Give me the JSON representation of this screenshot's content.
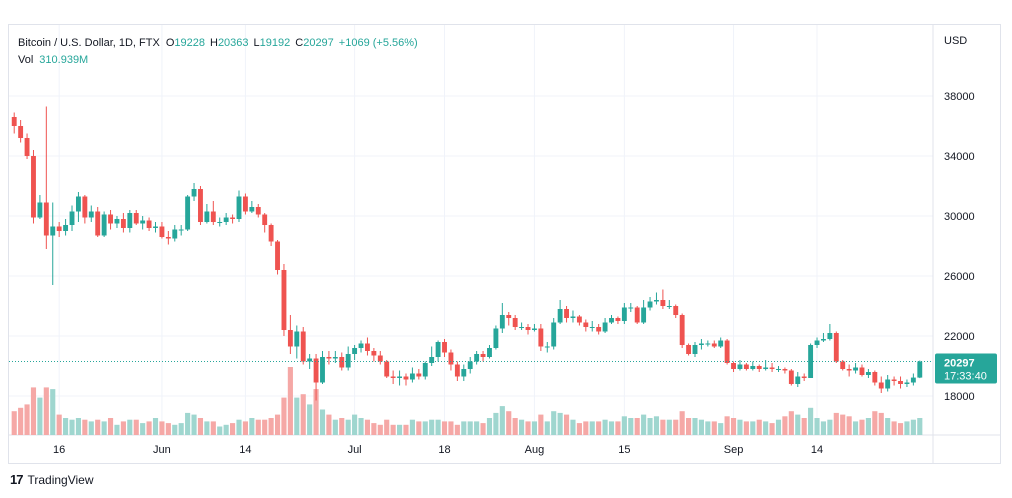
{
  "legend": {
    "symbol": "Bitcoin / U.S. Dollar, 1D, FTX",
    "open_label": "O",
    "open": "19228",
    "high_label": "H",
    "high": "20363",
    "low_label": "L",
    "low": "19192",
    "close_label": "C",
    "close": "20297",
    "change": "+1069 (+5.56%)",
    "vol_label": "Vol",
    "vol": "310.939M"
  },
  "price_tag": {
    "price": "20297",
    "countdown": "17:33:40"
  },
  "currency": "USD",
  "brand": {
    "logo": "17",
    "name": "TradingView"
  },
  "colors": {
    "up": "#26a69a",
    "down": "#ef5350",
    "up_vol": "#9fd6cf",
    "down_vol": "#f5a8a6",
    "grid": "#f0f3fa",
    "tag": "#26a69a"
  },
  "chart_data": {
    "type": "candlestick",
    "title": "Bitcoin / U.S. Dollar, 1D, FTX",
    "ylabel": "USD",
    "ylim": [
      15500,
      42400
    ],
    "y_ticks": [
      18000,
      22000,
      26000,
      30000,
      34000,
      38000
    ],
    "x_ticks": [
      {
        "label": "16",
        "index": 7
      },
      {
        "label": "Jun",
        "index": 23
      },
      {
        "label": "14",
        "index": 36
      },
      {
        "label": "Jul",
        "index": 53
      },
      {
        "label": "18",
        "index": 67
      },
      {
        "label": "Aug",
        "index": 81
      },
      {
        "label": "15",
        "index": 95
      },
      {
        "label": "Sep",
        "index": 112
      },
      {
        "label": "14",
        "index": 125
      }
    ],
    "last_price": 20297,
    "candles": [
      [
        36600,
        36000,
        36900,
        35500,
        14
      ],
      [
        36000,
        35200,
        36400,
        34900,
        16
      ],
      [
        35200,
        34000,
        35500,
        33800,
        18
      ],
      [
        34000,
        29900,
        34400,
        29500,
        28
      ],
      [
        29900,
        30900,
        31400,
        29800,
        22
      ],
      [
        30900,
        28700,
        37300,
        27800,
        28
      ],
      [
        28700,
        29300,
        30900,
        25400,
        27
      ],
      [
        29300,
        29000,
        29600,
        28600,
        12
      ],
      [
        29000,
        29400,
        29800,
        28700,
        10
      ],
      [
        29400,
        30300,
        30700,
        29000,
        9
      ],
      [
        30300,
        31300,
        31600,
        29600,
        10
      ],
      [
        31300,
        29900,
        31400,
        29500,
        9
      ],
      [
        29900,
        30300,
        30700,
        29600,
        8
      ],
      [
        30300,
        28700,
        30600,
        28600,
        9
      ],
      [
        28700,
        30100,
        30300,
        28600,
        8
      ],
      [
        30100,
        29500,
        30400,
        29100,
        10
      ],
      [
        29500,
        29800,
        30000,
        29200,
        6
      ],
      [
        29800,
        29200,
        30200,
        28900,
        8
      ],
      [
        29200,
        30200,
        30400,
        28900,
        9
      ],
      [
        30200,
        29500,
        30400,
        29400,
        9
      ],
      [
        29500,
        29700,
        30000,
        29100,
        7
      ],
      [
        29700,
        29200,
        29900,
        29000,
        8
      ],
      [
        29200,
        29300,
        29600,
        28900,
        10
      ],
      [
        29300,
        28600,
        29600,
        28500,
        8
      ],
      [
        28600,
        28500,
        29000,
        28100,
        7
      ],
      [
        28500,
        29100,
        29400,
        28300,
        6
      ],
      [
        29100,
        29100,
        29400,
        28700,
        7
      ],
      [
        29100,
        31300,
        31400,
        29000,
        13
      ],
      [
        31300,
        31800,
        32200,
        31000,
        12
      ],
      [
        31800,
        29600,
        32000,
        29400,
        10
      ],
      [
        29600,
        30300,
        30800,
        29500,
        8
      ],
      [
        30300,
        29600,
        31000,
        29400,
        8
      ],
      [
        29600,
        29600,
        29900,
        29300,
        5
      ],
      [
        29600,
        29900,
        30200,
        29400,
        6
      ],
      [
        29900,
        29800,
        30100,
        29500,
        7
      ],
      [
        29800,
        31300,
        31700,
        29600,
        9
      ],
      [
        31300,
        30300,
        31500,
        30100,
        8
      ],
      [
        30300,
        30600,
        31000,
        30200,
        10
      ],
      [
        30600,
        30100,
        30800,
        29900,
        9
      ],
      [
        30100,
        29400,
        30200,
        28900,
        9
      ],
      [
        29400,
        28300,
        29500,
        28000,
        10
      ],
      [
        28300,
        26400,
        28400,
        26100,
        12
      ],
      [
        26400,
        22400,
        26800,
        22000,
        22
      ],
      [
        22400,
        21300,
        23400,
        20800,
        40
      ],
      [
        21300,
        22300,
        22700,
        20500,
        22
      ],
      [
        22300,
        20300,
        22600,
        20100,
        24
      ],
      [
        20300,
        20500,
        20800,
        19800,
        18
      ],
      [
        20500,
        18900,
        20800,
        17700,
        27
      ],
      [
        18900,
        20600,
        21000,
        18800,
        15
      ],
      [
        20600,
        20500,
        21000,
        20100,
        12
      ],
      [
        20500,
        20600,
        21000,
        20200,
        9
      ],
      [
        20600,
        19900,
        20900,
        19700,
        10
      ],
      [
        19900,
        20800,
        21300,
        19700,
        9
      ],
      [
        20800,
        21200,
        21400,
        20400,
        12
      ],
      [
        21200,
        21500,
        21700,
        20900,
        10
      ],
      [
        21500,
        21000,
        21900,
        20700,
        9
      ],
      [
        21000,
        20700,
        21200,
        20300,
        7
      ],
      [
        20700,
        20300,
        21000,
        20100,
        6
      ],
      [
        20300,
        19300,
        20400,
        19200,
        9
      ],
      [
        19300,
        19200,
        19700,
        18800,
        6
      ],
      [
        19200,
        19300,
        19700,
        18700,
        6
      ],
      [
        19300,
        19100,
        19500,
        18700,
        6
      ],
      [
        19100,
        19500,
        19900,
        18900,
        9
      ],
      [
        19500,
        19300,
        19800,
        19100,
        8
      ],
      [
        19300,
        20200,
        20300,
        19100,
        8
      ],
      [
        20200,
        20600,
        21300,
        20000,
        9
      ],
      [
        20600,
        21600,
        21700,
        20300,
        9
      ],
      [
        21600,
        20900,
        21800,
        20600,
        8
      ],
      [
        20900,
        20100,
        21100,
        19700,
        8
      ],
      [
        20100,
        19300,
        20300,
        19000,
        6
      ],
      [
        19300,
        19800,
        20100,
        19000,
        8
      ],
      [
        19800,
        20300,
        20600,
        19500,
        8
      ],
      [
        20300,
        20800,
        21000,
        20100,
        8
      ],
      [
        20800,
        20600,
        21000,
        20300,
        7
      ],
      [
        20600,
        21200,
        21400,
        20500,
        10
      ],
      [
        21200,
        22500,
        22700,
        21100,
        13
      ],
      [
        22500,
        23400,
        24200,
        22200,
        17
      ],
      [
        23400,
        23200,
        23600,
        22700,
        14
      ],
      [
        23200,
        22600,
        23400,
        22400,
        10
      ],
      [
        22600,
        22600,
        22900,
        22400,
        9
      ],
      [
        22600,
        22400,
        22800,
        22100,
        8
      ],
      [
        22400,
        22500,
        22800,
        22300,
        8
      ],
      [
        22500,
        21300,
        22800,
        21000,
        12
      ],
      [
        21300,
        21300,
        21600,
        20900,
        8
      ],
      [
        21300,
        22900,
        23200,
        21100,
        14
      ],
      [
        22900,
        23800,
        24400,
        22800,
        13
      ],
      [
        23800,
        23200,
        24000,
        22900,
        12
      ],
      [
        23200,
        23300,
        23700,
        22900,
        9
      ],
      [
        23300,
        22900,
        23400,
        22700,
        7
      ],
      [
        22900,
        22600,
        23100,
        22300,
        8
      ],
      [
        22600,
        22600,
        23000,
        22300,
        8
      ],
      [
        22600,
        22300,
        22800,
        22100,
        8
      ],
      [
        22300,
        22900,
        23200,
        22200,
        9
      ],
      [
        22900,
        23200,
        23400,
        22800,
        8
      ],
      [
        23200,
        23000,
        23300,
        22800,
        8
      ],
      [
        23000,
        23900,
        24200,
        22800,
        11
      ],
      [
        23900,
        23900,
        24200,
        23600,
        10
      ],
      [
        23900,
        22900,
        24000,
        22800,
        10
      ],
      [
        22900,
        23900,
        24400,
        22800,
        12
      ],
      [
        23900,
        24300,
        24600,
        23700,
        10
      ],
      [
        24300,
        24400,
        24900,
        24100,
        11
      ],
      [
        24400,
        24000,
        25100,
        23800,
        9
      ],
      [
        24000,
        24000,
        24400,
        23800,
        9
      ],
      [
        24000,
        23400,
        24100,
        23200,
        9
      ],
      [
        23400,
        21400,
        23500,
        21200,
        14
      ],
      [
        21400,
        20800,
        21500,
        20700,
        10
      ],
      [
        20800,
        21400,
        21600,
        20600,
        10
      ],
      [
        21400,
        21500,
        21800,
        21100,
        9
      ],
      [
        21500,
        21500,
        21700,
        21300,
        8
      ],
      [
        21500,
        21300,
        21700,
        21200,
        8
      ],
      [
        21300,
        21700,
        21900,
        21200,
        7
      ],
      [
        21700,
        20200,
        21800,
        20100,
        11
      ],
      [
        20200,
        19800,
        20300,
        19600,
        10
      ],
      [
        19800,
        20100,
        20400,
        19700,
        9
      ],
      [
        20100,
        19800,
        20200,
        19700,
        8
      ],
      [
        19800,
        20000,
        20300,
        19700,
        8
      ],
      [
        20000,
        19800,
        20100,
        19600,
        9
      ],
      [
        19800,
        19900,
        20400,
        19700,
        8
      ],
      [
        19900,
        19800,
        20200,
        19600,
        7
      ],
      [
        19800,
        19800,
        20000,
        19600,
        9
      ],
      [
        19800,
        19700,
        19900,
        19500,
        11
      ],
      [
        19700,
        18800,
        19800,
        18700,
        14
      ],
      [
        18800,
        19300,
        19600,
        18600,
        12
      ],
      [
        19300,
        19200,
        19500,
        19000,
        10
      ],
      [
        19200,
        21400,
        21500,
        19200,
        16
      ],
      [
        21400,
        21700,
        21900,
        21200,
        10
      ],
      [
        21700,
        21800,
        22200,
        21600,
        8
      ],
      [
        21800,
        22200,
        22800,
        21700,
        9
      ],
      [
        22200,
        20300,
        22300,
        20200,
        13
      ],
      [
        20300,
        19800,
        20400,
        19700,
        12
      ],
      [
        19800,
        19700,
        20100,
        19300,
        11
      ],
      [
        19700,
        19900,
        20200,
        19500,
        8
      ],
      [
        19900,
        19400,
        20100,
        19300,
        9
      ],
      [
        19400,
        19600,
        19800,
        19200,
        10
      ],
      [
        19600,
        18900,
        19700,
        18700,
        14
      ],
      [
        18900,
        18500,
        19300,
        18200,
        13
      ],
      [
        18500,
        19100,
        19400,
        18300,
        10
      ],
      [
        19100,
        19000,
        19300,
        18700,
        8
      ],
      [
        19000,
        18800,
        19300,
        18500,
        7
      ],
      [
        18800,
        18900,
        19100,
        18600,
        8
      ],
      [
        18900,
        19228,
        19500,
        18700,
        9
      ],
      [
        19228,
        20297,
        20363,
        19192,
        10
      ]
    ]
  }
}
